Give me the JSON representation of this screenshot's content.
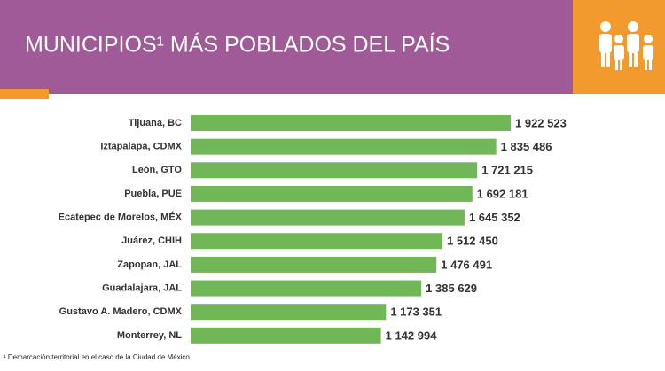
{
  "chart_data": {
    "type": "bar",
    "orientation": "horizontal",
    "title": "MUNICIPIOS¹ MÁS POBLADOS DEL PAÍS",
    "footnote": "¹ Demarcación territorial en el caso de la Ciudad de México.",
    "categories": [
      "Tijuana, BC",
      "Iztapalapa, CDMX",
      "León, GTO",
      "Puebla, PUE",
      "Ecatepec de Morelos, MÉX",
      "Juárez, CHIH",
      "Zapopan, JAL",
      "Guadalajara, JAL",
      "Gustavo A. Madero, CDMX",
      "Monterrey, NL"
    ],
    "values": [
      1922523,
      1835486,
      1721215,
      1692181,
      1645352,
      1512450,
      1476491,
      1385629,
      1173351,
      1142994
    ],
    "value_labels": [
      "1 922 523",
      "1 835 486",
      "1 721 215",
      "1 692 181",
      "1 645 352",
      "1 512 450",
      "1 476 491",
      "1 385 629",
      "1 173 351",
      "1 142 994"
    ],
    "color": "#71b757"
  }
}
